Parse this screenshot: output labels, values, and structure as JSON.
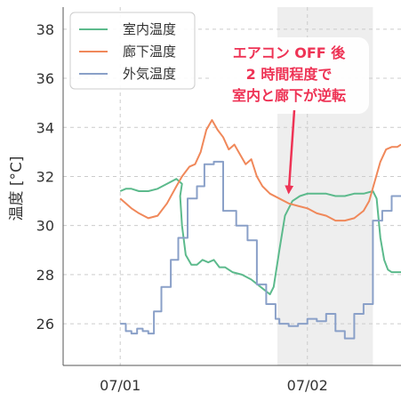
{
  "chart_data": {
    "type": "line",
    "title": "",
    "xlabel": "",
    "ylabel": "温度 [°C]",
    "ylim": [
      24.3,
      38.9
    ],
    "yticks": [
      26,
      28,
      30,
      32,
      34,
      36,
      38
    ],
    "xlim": [
      -0.305,
      1.5
    ],
    "xticks": [
      {
        "x": 0.0,
        "label": "07/01"
      },
      {
        "x": 1.0,
        "label": "07/02"
      }
    ],
    "grid": true,
    "legend_position": "top-left",
    "shaded_region": {
      "x_start": 0.84,
      "x_end": 1.35,
      "color": "#eeeeee"
    },
    "series": [
      {
        "name": "室内温度",
        "color": "#5cba8c",
        "points": [
          [
            0.0,
            31.4
          ],
          [
            0.03,
            31.5
          ],
          [
            0.06,
            31.5
          ],
          [
            0.1,
            31.4
          ],
          [
            0.15,
            31.4
          ],
          [
            0.2,
            31.5
          ],
          [
            0.25,
            31.7
          ],
          [
            0.3,
            31.9
          ],
          [
            0.33,
            31.7
          ],
          [
            0.32,
            31.2
          ],
          [
            0.33,
            30.0
          ],
          [
            0.35,
            28.8
          ],
          [
            0.38,
            28.4
          ],
          [
            0.41,
            28.4
          ],
          [
            0.44,
            28.6
          ],
          [
            0.47,
            28.5
          ],
          [
            0.5,
            28.6
          ],
          [
            0.53,
            28.3
          ],
          [
            0.56,
            28.3
          ],
          [
            0.6,
            28.1
          ],
          [
            0.65,
            28.0
          ],
          [
            0.7,
            27.8
          ],
          [
            0.75,
            27.5
          ],
          [
            0.8,
            27.2
          ],
          [
            0.82,
            27.5
          ],
          [
            0.85,
            29.0
          ],
          [
            0.88,
            30.4
          ],
          [
            0.92,
            31.0
          ],
          [
            0.96,
            31.2
          ],
          [
            1.0,
            31.3
          ],
          [
            1.05,
            31.3
          ],
          [
            1.1,
            31.3
          ],
          [
            1.15,
            31.2
          ],
          [
            1.2,
            31.2
          ],
          [
            1.25,
            31.3
          ],
          [
            1.3,
            31.3
          ],
          [
            1.35,
            31.4
          ],
          [
            1.37,
            31.1
          ],
          [
            1.39,
            29.5
          ],
          [
            1.41,
            28.6
          ],
          [
            1.43,
            28.2
          ],
          [
            1.45,
            28.1
          ],
          [
            1.48,
            28.1
          ],
          [
            1.5,
            28.1
          ]
        ]
      },
      {
        "name": "廊下温度",
        "color": "#f0885a",
        "points": [
          [
            0.0,
            31.1
          ],
          [
            0.03,
            30.9
          ],
          [
            0.06,
            30.7
          ],
          [
            0.1,
            30.5
          ],
          [
            0.15,
            30.3
          ],
          [
            0.2,
            30.4
          ],
          [
            0.25,
            30.9
          ],
          [
            0.3,
            31.6
          ],
          [
            0.33,
            32.0
          ],
          [
            0.37,
            32.4
          ],
          [
            0.4,
            32.5
          ],
          [
            0.43,
            33.0
          ],
          [
            0.46,
            33.9
          ],
          [
            0.49,
            34.3
          ],
          [
            0.52,
            33.9
          ],
          [
            0.55,
            33.6
          ],
          [
            0.58,
            33.1
          ],
          [
            0.61,
            33.3
          ],
          [
            0.64,
            32.9
          ],
          [
            0.67,
            32.5
          ],
          [
            0.7,
            32.7
          ],
          [
            0.73,
            32.0
          ],
          [
            0.76,
            31.6
          ],
          [
            0.8,
            31.3
          ],
          [
            0.85,
            31.1
          ],
          [
            0.9,
            30.9
          ],
          [
            0.95,
            30.8
          ],
          [
            1.0,
            30.7
          ],
          [
            1.05,
            30.5
          ],
          [
            1.1,
            30.4
          ],
          [
            1.15,
            30.2
          ],
          [
            1.2,
            30.2
          ],
          [
            1.25,
            30.3
          ],
          [
            1.3,
            30.6
          ],
          [
            1.33,
            31.0
          ],
          [
            1.36,
            31.8
          ],
          [
            1.39,
            32.6
          ],
          [
            1.42,
            33.1
          ],
          [
            1.45,
            33.2
          ],
          [
            1.48,
            33.2
          ],
          [
            1.5,
            33.3
          ]
        ]
      },
      {
        "name": "外気温度",
        "color": "#8aa0c8",
        "points": [
          [
            0.0,
            26.0
          ],
          [
            0.03,
            26.0
          ],
          [
            0.03,
            25.7
          ],
          [
            0.06,
            25.7
          ],
          [
            0.06,
            25.6
          ],
          [
            0.09,
            25.6
          ],
          [
            0.09,
            25.8
          ],
          [
            0.12,
            25.8
          ],
          [
            0.12,
            25.7
          ],
          [
            0.15,
            25.7
          ],
          [
            0.15,
            25.6
          ],
          [
            0.18,
            25.6
          ],
          [
            0.18,
            26.5
          ],
          [
            0.22,
            26.5
          ],
          [
            0.22,
            27.5
          ],
          [
            0.27,
            27.5
          ],
          [
            0.27,
            28.6
          ],
          [
            0.31,
            28.6
          ],
          [
            0.31,
            29.5
          ],
          [
            0.36,
            29.5
          ],
          [
            0.36,
            31.1
          ],
          [
            0.41,
            31.1
          ],
          [
            0.41,
            31.6
          ],
          [
            0.45,
            31.6
          ],
          [
            0.45,
            32.5
          ],
          [
            0.5,
            32.5
          ],
          [
            0.5,
            32.6
          ],
          [
            0.55,
            32.6
          ],
          [
            0.55,
            30.6
          ],
          [
            0.62,
            30.6
          ],
          [
            0.62,
            30.0
          ],
          [
            0.68,
            30.0
          ],
          [
            0.68,
            29.4
          ],
          [
            0.73,
            29.4
          ],
          [
            0.73,
            27.6
          ],
          [
            0.78,
            27.6
          ],
          [
            0.78,
            26.8
          ],
          [
            0.83,
            26.8
          ],
          [
            0.83,
            26.2
          ],
          [
            0.85,
            26.2
          ],
          [
            0.85,
            26.0
          ],
          [
            0.9,
            26.0
          ],
          [
            0.9,
            25.9
          ],
          [
            0.95,
            25.9
          ],
          [
            0.95,
            26.0
          ],
          [
            1.0,
            26.0
          ],
          [
            1.0,
            26.2
          ],
          [
            1.05,
            26.2
          ],
          [
            1.05,
            26.1
          ],
          [
            1.1,
            26.1
          ],
          [
            1.1,
            26.4
          ],
          [
            1.15,
            26.4
          ],
          [
            1.15,
            25.7
          ],
          [
            1.2,
            25.7
          ],
          [
            1.2,
            25.4
          ],
          [
            1.25,
            25.4
          ],
          [
            1.25,
            26.4
          ],
          [
            1.3,
            26.4
          ],
          [
            1.3,
            26.8
          ],
          [
            1.35,
            26.8
          ],
          [
            1.35,
            30.2
          ],
          [
            1.4,
            30.2
          ],
          [
            1.4,
            30.6
          ],
          [
            1.45,
            30.6
          ],
          [
            1.45,
            31.2
          ],
          [
            1.5,
            31.2
          ]
        ]
      }
    ],
    "annotation": {
      "lines": [
        "エアコン OFF 後",
        "2 時間程度で",
        "室内と廊下が逆転"
      ],
      "text_color": "#ee3355",
      "arrow_color": "#ee3355",
      "target": [
        0.9,
        31.2
      ]
    }
  }
}
